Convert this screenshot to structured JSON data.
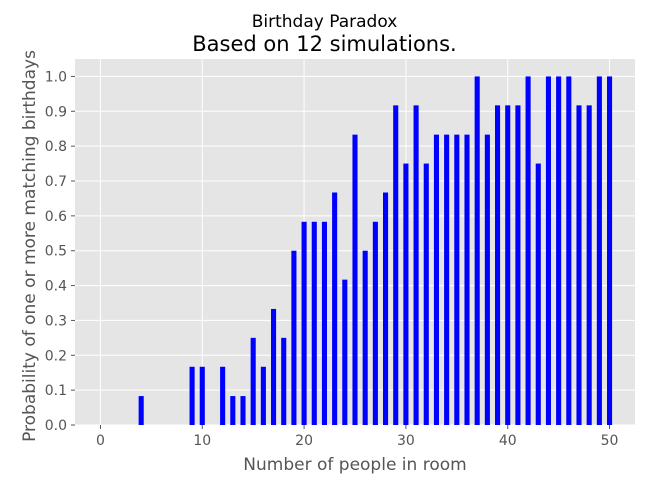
{
  "chart_data": {
    "type": "bar",
    "suptitle": "Birthday Paradox",
    "title": "Based on 12 simulations.",
    "xlabel": "Number of people in room",
    "ylabel": "Probability of one or more matching birthdays",
    "xlim": [
      -2.5,
      52.5
    ],
    "ylim": [
      0,
      1.05
    ],
    "xticks": [
      0,
      10,
      20,
      30,
      40,
      50
    ],
    "yticks": [
      0.0,
      0.1,
      0.2,
      0.3,
      0.4,
      0.5,
      0.6,
      0.7,
      0.8,
      0.9,
      1.0
    ],
    "ytick_labels": [
      "0.0",
      "0.1",
      "0.2",
      "0.3",
      "0.4",
      "0.5",
      "0.6",
      "0.7",
      "0.8",
      "0.9",
      "1.0"
    ],
    "grid": true,
    "bar_color": "#0000ff",
    "background_color": "#e5e5e5",
    "x": [
      4,
      9,
      10,
      12,
      13,
      14,
      15,
      16,
      17,
      18,
      19,
      20,
      21,
      22,
      23,
      24,
      25,
      26,
      27,
      28,
      29,
      30,
      31,
      32,
      33,
      34,
      35,
      36,
      37,
      38,
      39,
      40,
      41,
      42,
      43,
      44,
      45,
      46,
      47,
      48,
      49,
      50
    ],
    "values": [
      0.083,
      0.167,
      0.167,
      0.167,
      0.083,
      0.083,
      0.25,
      0.167,
      0.333,
      0.25,
      0.5,
      0.583,
      0.583,
      0.583,
      0.667,
      0.417,
      0.833,
      0.5,
      0.583,
      0.667,
      0.917,
      0.75,
      0.917,
      0.75,
      0.833,
      0.833,
      0.833,
      0.833,
      1.0,
      0.833,
      0.917,
      0.917,
      0.917,
      1.0,
      0.75,
      1.0,
      1.0,
      1.0,
      0.917,
      0.917,
      1.0,
      1.0
    ]
  }
}
